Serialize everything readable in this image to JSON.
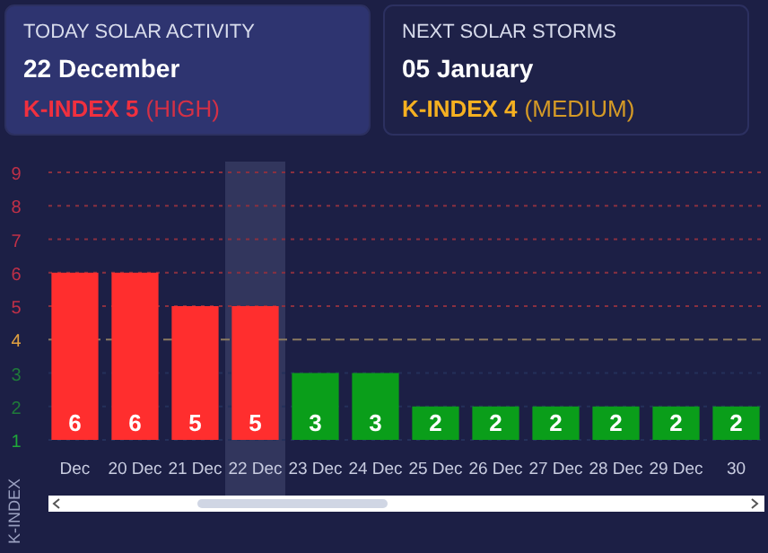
{
  "chart_data": [
    {
      "type": "other",
      "title": "TODAY SOLAR ACTIVITY",
      "subtitle": "22 December",
      "annotations": [
        "K-INDEX 5",
        "(HIGH)"
      ],
      "color": "#f0303f"
    },
    {
      "type": "other",
      "title": "NEXT SOLAR STORMS",
      "subtitle": "05 January",
      "annotations": [
        "K-INDEX 4",
        "(MEDIUM)"
      ],
      "color": "#f5b021"
    },
    {
      "type": "bar",
      "ylabel": "K-INDEX",
      "categories": [
        "Dec",
        "20 Dec",
        "21 Dec",
        "22 Dec",
        "23 Dec",
        "24 Dec",
        "25 Dec",
        "26 Dec",
        "27 Dec",
        "28 Dec",
        "29 Dec",
        "30"
      ],
      "values": [
        6,
        6,
        5,
        5,
        3,
        3,
        2,
        2,
        2,
        2,
        2,
        2
      ],
      "colors": [
        "#ff2e2e",
        "#ff2e2e",
        "#ff2e2e",
        "#ff2e2e",
        "#0a9e1a",
        "#0a9e1a",
        "#0a9e1a",
        "#0a9e1a",
        "#0a9e1a",
        "#0a9e1a",
        "#0a9e1a",
        "#0a9e1a"
      ],
      "data_labels": true,
      "ylim": [
        1,
        9
      ],
      "yticks": [
        1,
        2,
        3,
        4,
        5,
        6,
        7,
        8,
        9
      ],
      "grid": "y",
      "ref_lines": [
        {
          "axis": "y",
          "value": 4,
          "color": "#8a7a60",
          "line_style": "dashed"
        }
      ],
      "bands": [
        {
          "axis": "x",
          "from": "22 Dec",
          "to": "22 Dec",
          "color": "#3a3f66"
        }
      ]
    }
  ]
}
